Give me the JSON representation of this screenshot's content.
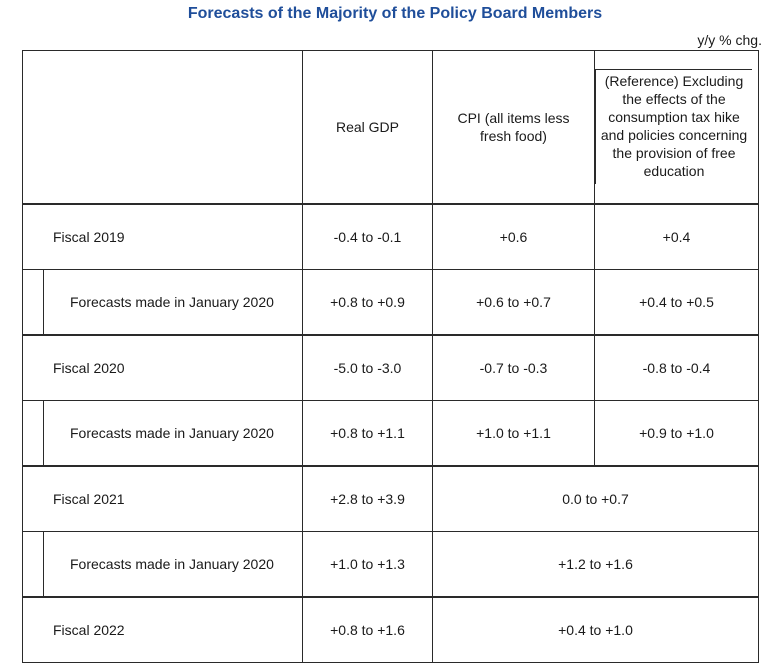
{
  "title": "Forecasts of the Majority of the Policy Board Members",
  "unit": "y/y % chg.",
  "columns": {
    "real_gdp": "Real GDP",
    "cpi": "CPI (all items less fresh food)",
    "reference": "(Reference) Excluding the effects of the consumption tax hike and policies concerning the provision of free education"
  },
  "rows": [
    {
      "label": "Fiscal 2019",
      "gdp": "-0.4 to -0.1",
      "cpi": "+0.6",
      "ref": "+0.4"
    },
    {
      "label": "Forecasts made in January 2020",
      "gdp": "+0.8 to +0.9",
      "cpi": "+0.6 to +0.7",
      "ref": "+0.4 to +0.5"
    },
    {
      "label": "Fiscal 2020",
      "gdp": "-5.0 to -3.0",
      "cpi": "-0.7 to -0.3",
      "ref": "-0.8 to -0.4"
    },
    {
      "label": "Forecasts made in January 2020",
      "gdp": "+0.8 to +1.1",
      "cpi": "+1.0 to +1.1",
      "ref": "+0.9 to +1.0"
    },
    {
      "label": "Fiscal 2021",
      "gdp": "+2.8 to +3.9",
      "cpi_merged": "0.0 to +0.7"
    },
    {
      "label": "Forecasts made in January 2020",
      "gdp": "+1.0 to +1.3",
      "cpi_merged": "+1.2 to +1.6"
    },
    {
      "label": "Fiscal 2022",
      "gdp": "+0.8 to +1.6",
      "cpi_merged": "+0.4 to +1.0"
    }
  ]
}
